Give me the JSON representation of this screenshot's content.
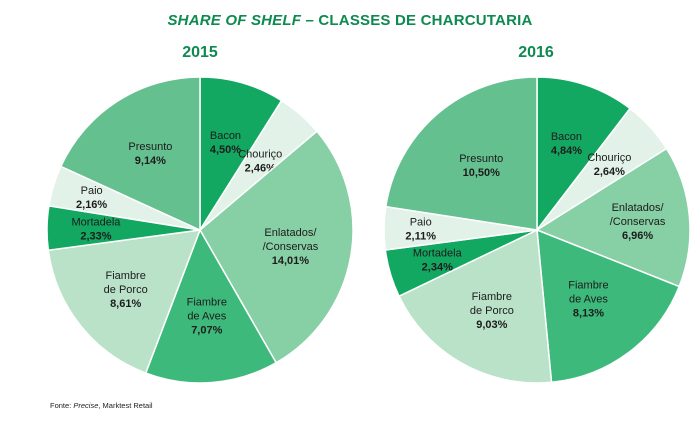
{
  "title_italic": "SHARE OF SHELF",
  "title_rest": " – CLASSES DE CHARCUTARIA",
  "source": {
    "prefix": "Fonte: ",
    "italic": "Precise",
    "suffix": ", Marktest Retail"
  },
  "colors": {
    "dark_green": "#13a862",
    "light_green": "#e2f2e8",
    "medium_green": "#87cfa5",
    "lighter_green": "#b9e2c9",
    "green": "#3dba7b",
    "title_green": "#0e8a4f"
  },
  "chart_data": [
    {
      "type": "pie",
      "title": "2015",
      "slices": [
        {
          "label_lines": [
            "Bacon"
          ],
          "value_label": "4,50%",
          "value": 4.5,
          "color": "#13a862"
        },
        {
          "label_lines": [
            "Chouriço"
          ],
          "value_label": "2,46%",
          "value": 2.46,
          "color": "#e2f2e8"
        },
        {
          "label_lines": [
            "Enlatados/",
            "/Conservas"
          ],
          "value_label": "14,01%",
          "value": 14.01,
          "color": "#87cfa5"
        },
        {
          "label_lines": [
            "Fiambre",
            "de Aves"
          ],
          "value_label": "7,07%",
          "value": 7.07,
          "color": "#3dba7b"
        },
        {
          "label_lines": [
            "Fiambre",
            "de Porco"
          ],
          "value_label": "8,61%",
          "value": 8.61,
          "color": "#b9e2c9"
        },
        {
          "label_lines": [
            "Mortadela"
          ],
          "value_label": "2,33%",
          "value": 2.33,
          "color": "#13a862"
        },
        {
          "label_lines": [
            "Paio"
          ],
          "value_label": "2,16%",
          "value": 2.16,
          "color": "#e2f2e8"
        },
        {
          "label_lines": [
            "Presunto"
          ],
          "value_label": "9,14%",
          "value": 9.14,
          "color": "#65c08f"
        }
      ]
    },
    {
      "type": "pie",
      "title": "2016",
      "slices": [
        {
          "label_lines": [
            "Bacon"
          ],
          "value_label": "4,84%",
          "value": 4.84,
          "color": "#13a862"
        },
        {
          "label_lines": [
            "Chouriço"
          ],
          "value_label": "2,64%",
          "value": 2.64,
          "color": "#e2f2e8"
        },
        {
          "label_lines": [
            "Enlatados/",
            "/Conservas"
          ],
          "value_label": "6,96%",
          "value": 6.96,
          "color": "#87cfa5"
        },
        {
          "label_lines": [
            "Fiambre",
            "de Aves"
          ],
          "value_label": "8,13%",
          "value": 8.13,
          "color": "#3dba7b"
        },
        {
          "label_lines": [
            "Fiambre",
            "de Porco"
          ],
          "value_label": "9,03%",
          "value": 9.03,
          "color": "#b9e2c9"
        },
        {
          "label_lines": [
            "Mortadela"
          ],
          "value_label": "2,34%",
          "value": 2.34,
          "color": "#13a862"
        },
        {
          "label_lines": [
            "Paio"
          ],
          "value_label": "2,11%",
          "value": 2.11,
          "color": "#e2f2e8"
        },
        {
          "label_lines": [
            "Presunto"
          ],
          "value_label": "10,50%",
          "value": 10.5,
          "color": "#65c08f"
        }
      ]
    }
  ]
}
